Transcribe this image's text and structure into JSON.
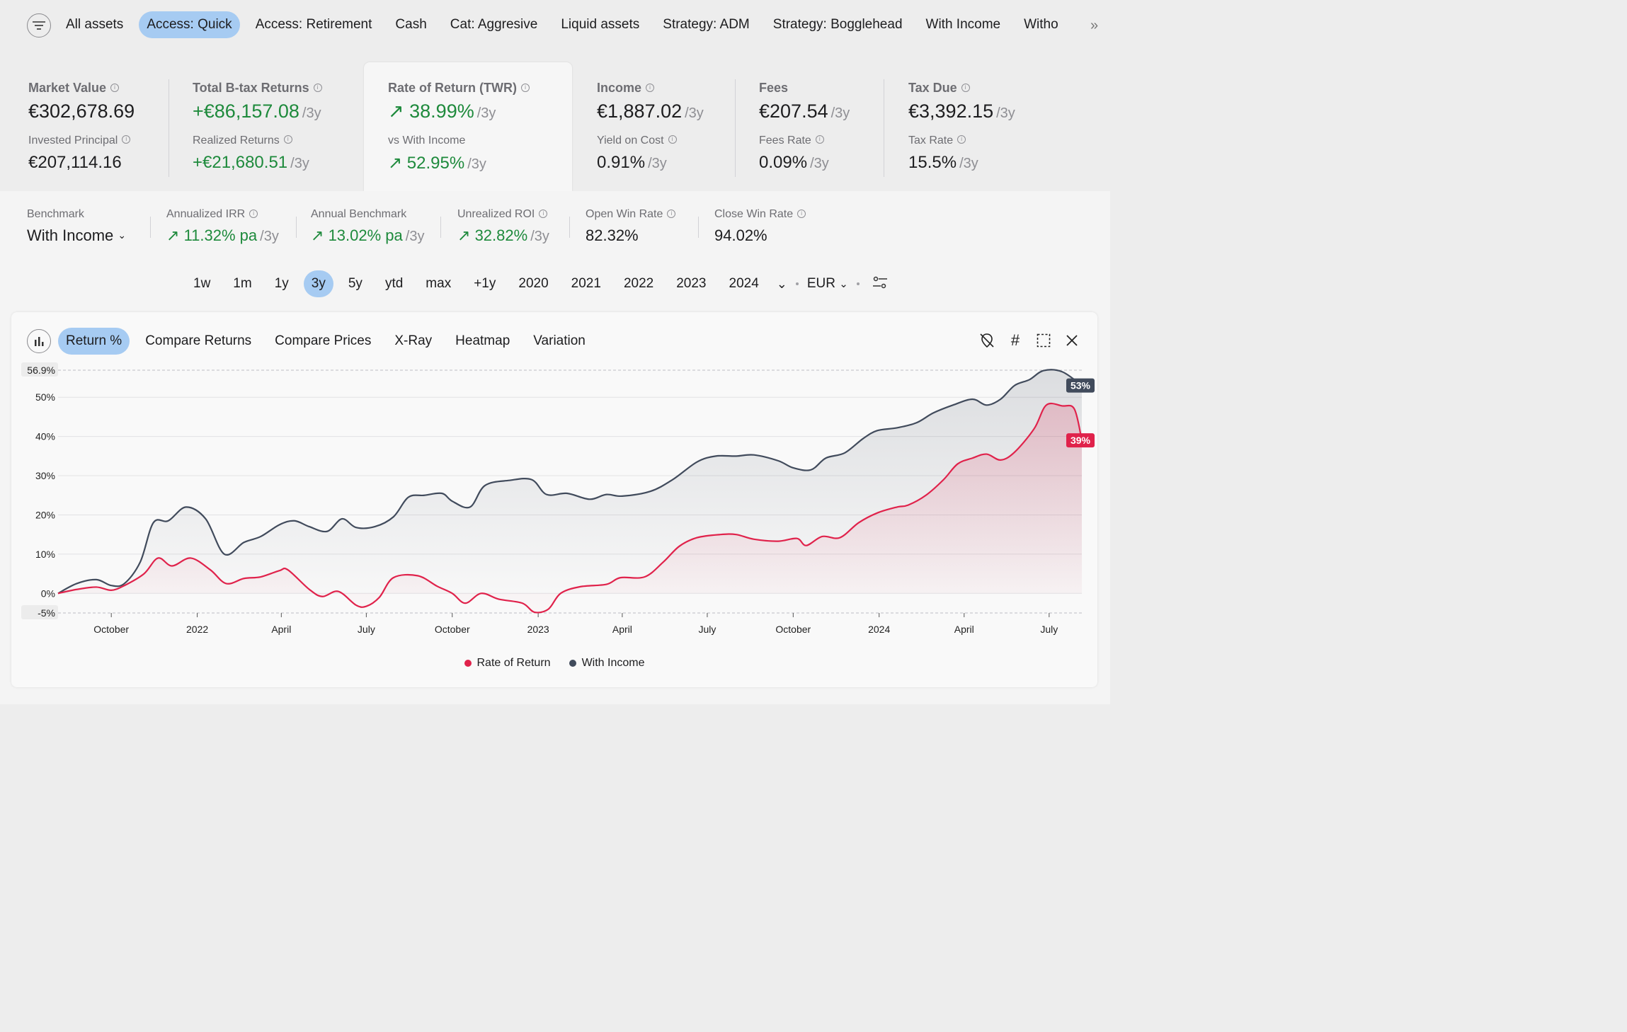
{
  "filters": {
    "tabs": [
      "All assets",
      "Access: Quick",
      "Access: Retirement",
      "Cash",
      "Cat: Aggresive",
      "Liquid assets",
      "Strategy: ADM",
      "Strategy: Bogglehead",
      "With Income",
      "Witho"
    ],
    "active": "Access: Quick"
  },
  "stats": {
    "market_value": {
      "label": "Market Value",
      "value": "€302,678.69",
      "sub_label": "Invested Principal",
      "sub_value": "€207,114.16"
    },
    "total_returns": {
      "label": "Total B-tax Returns",
      "value": "+€86,157.08",
      "period": "/3y",
      "sub_label": "Realized Returns",
      "sub_value": "+€21,680.51",
      "sub_period": "/3y"
    },
    "rate_of_return": {
      "label": "Rate of Return (TWR)",
      "value": "38.99%",
      "period": "/3y",
      "sub_label": "vs With Income",
      "sub_value": "52.95%",
      "sub_period": "/3y"
    },
    "income": {
      "label": "Income",
      "value": "€1,887.02",
      "period": "/3y",
      "sub_label": "Yield on Cost",
      "sub_value": "0.91%",
      "sub_period": "/3y"
    },
    "fees": {
      "label": "Fees",
      "value": "€207.54",
      "period": "/3y",
      "sub_label": "Fees Rate",
      "sub_value": "0.09%",
      "sub_period": "/3y"
    },
    "tax_due": {
      "label": "Tax Due",
      "value": "€3,392.15",
      "period": "/3y",
      "sub_label": "Tax Rate",
      "sub_value": "15.5%",
      "sub_period": "/3y"
    }
  },
  "benchmark": {
    "label": "Benchmark",
    "value": "With Income",
    "irr": {
      "label": "Annualized IRR",
      "value": "11.32% pa",
      "period": "/3y"
    },
    "annual_bench": {
      "label": "Annual Benchmark",
      "value": "13.02% pa",
      "period": "/3y"
    },
    "roi": {
      "label": "Unrealized ROI",
      "value": "32.82%",
      "period": "/3y"
    },
    "open_win": {
      "label": "Open Win Rate",
      "value": "82.32%"
    },
    "close_win": {
      "label": "Close Win Rate",
      "value": "94.02%"
    }
  },
  "periods": {
    "items": [
      "1w",
      "1m",
      "1y",
      "3y",
      "5y",
      "ytd",
      "max",
      "+1y",
      "2020",
      "2021",
      "2022",
      "2023",
      "2024"
    ],
    "active": "3y",
    "currency": "EUR"
  },
  "chart_tabs": {
    "items": [
      "Return %",
      "Compare Returns",
      "Compare Prices",
      "X-Ray",
      "Heatmap",
      "Variation"
    ],
    "active": "Return %"
  },
  "colors": {
    "accent": "#a6cbf2",
    "gain": "#1e8a3c",
    "ror": "#e0224b",
    "income": "#414b5c"
  },
  "chart_data": {
    "type": "line",
    "ylim": [
      -5,
      56.9
    ],
    "y_ticks": [
      "50%",
      "40%",
      "30%",
      "20%",
      "10%",
      "0%"
    ],
    "y_tick_values": [
      50,
      40,
      30,
      20,
      10,
      0
    ],
    "y_max_label": "56.9%",
    "y_min_label": "-5%",
    "x_ticks": [
      "October",
      "2022",
      "April",
      "July",
      "October",
      "2023",
      "April",
      "July",
      "October",
      "2024",
      "April",
      "July"
    ],
    "x_tick_dates": [
      "2021-10-01",
      "2022-01-01",
      "2022-04-01",
      "2022-07-01",
      "2022-10-01",
      "2023-01-01",
      "2023-04-01",
      "2023-07-01",
      "2023-10-01",
      "2024-01-01",
      "2024-04-01",
      "2024-07-01"
    ],
    "x_range": [
      "2021-08-05",
      "2024-08-05"
    ],
    "series": [
      {
        "name": "Rate of Return",
        "color": "#e0224b",
        "end_label": "39%",
        "points": [
          [
            "2021-08-05",
            0
          ],
          [
            "2021-08-25",
            1
          ],
          [
            "2021-09-15",
            1.6
          ],
          [
            "2021-10-01",
            0.8
          ],
          [
            "2021-10-15",
            2
          ],
          [
            "2021-11-05",
            5
          ],
          [
            "2021-11-20",
            9
          ],
          [
            "2021-12-05",
            7
          ],
          [
            "2021-12-25",
            9
          ],
          [
            "2022-01-15",
            6
          ],
          [
            "2022-02-01",
            2.5
          ],
          [
            "2022-02-20",
            3.8
          ],
          [
            "2022-03-10",
            4.2
          ],
          [
            "2022-03-30",
            5.8
          ],
          [
            "2022-04-08",
            6
          ],
          [
            "2022-05-01",
            1
          ],
          [
            "2022-05-15",
            -0.8
          ],
          [
            "2022-06-01",
            0.5
          ],
          [
            "2022-06-20",
            -3
          ],
          [
            "2022-07-01",
            -3.3
          ],
          [
            "2022-07-15",
            -1
          ],
          [
            "2022-07-30",
            4
          ],
          [
            "2022-08-25",
            4.5
          ],
          [
            "2022-09-15",
            1.8
          ],
          [
            "2022-10-01",
            0
          ],
          [
            "2022-10-15",
            -2.5
          ],
          [
            "2022-11-01",
            0
          ],
          [
            "2022-11-20",
            -1.5
          ],
          [
            "2022-12-15",
            -2.5
          ],
          [
            "2022-12-28",
            -4.8
          ],
          [
            "2023-01-12",
            -4
          ],
          [
            "2023-01-25",
            0
          ],
          [
            "2023-02-15",
            1.7
          ],
          [
            "2023-03-15",
            2.3
          ],
          [
            "2023-03-30",
            4
          ],
          [
            "2023-04-25",
            4.2
          ],
          [
            "2023-05-15",
            8
          ],
          [
            "2023-06-01",
            12
          ],
          [
            "2023-06-20",
            14.2
          ],
          [
            "2023-07-15",
            15
          ],
          [
            "2023-08-01",
            15
          ],
          [
            "2023-08-20",
            13.8
          ],
          [
            "2023-09-15",
            13.3
          ],
          [
            "2023-10-05",
            14
          ],
          [
            "2023-10-15",
            12.2
          ],
          [
            "2023-11-01",
            14.5
          ],
          [
            "2023-11-20",
            14.2
          ],
          [
            "2023-12-10",
            18
          ],
          [
            "2023-12-30",
            20.5
          ],
          [
            "2024-01-20",
            22
          ],
          [
            "2024-02-01",
            22.5
          ],
          [
            "2024-02-20",
            25
          ],
          [
            "2024-03-10",
            29
          ],
          [
            "2024-03-25",
            33
          ],
          [
            "2024-04-10",
            34.5
          ],
          [
            "2024-04-25",
            35.5
          ],
          [
            "2024-05-10",
            34
          ],
          [
            "2024-05-25",
            36
          ],
          [
            "2024-06-15",
            42
          ],
          [
            "2024-06-28",
            48
          ],
          [
            "2024-07-15",
            47.8
          ],
          [
            "2024-07-28",
            47
          ],
          [
            "2024-08-05",
            39
          ]
        ]
      },
      {
        "name": "With Income",
        "color": "#414b5c",
        "end_label": "53%",
        "points": [
          [
            "2021-08-05",
            0
          ],
          [
            "2021-08-25",
            2.5
          ],
          [
            "2021-09-15",
            3.5
          ],
          [
            "2021-10-01",
            2
          ],
          [
            "2021-10-15",
            2.5
          ],
          [
            "2021-11-01",
            8
          ],
          [
            "2021-11-15",
            18
          ],
          [
            "2021-12-01",
            18.5
          ],
          [
            "2021-12-20",
            22
          ],
          [
            "2022-01-10",
            19
          ],
          [
            "2022-01-30",
            10
          ],
          [
            "2022-02-20",
            13
          ],
          [
            "2022-03-10",
            14.5
          ],
          [
            "2022-03-30",
            17.5
          ],
          [
            "2022-04-15",
            18.5
          ],
          [
            "2022-05-01",
            17
          ],
          [
            "2022-05-20",
            15.8
          ],
          [
            "2022-06-05",
            19
          ],
          [
            "2022-06-20",
            16.8
          ],
          [
            "2022-07-10",
            17
          ],
          [
            "2022-07-30",
            19.5
          ],
          [
            "2022-08-15",
            24.5
          ],
          [
            "2022-09-01",
            25
          ],
          [
            "2022-09-20",
            25.5
          ],
          [
            "2022-10-01",
            23.5
          ],
          [
            "2022-10-20",
            22
          ],
          [
            "2022-11-05",
            27.5
          ],
          [
            "2022-12-01",
            28.8
          ],
          [
            "2022-12-25",
            29
          ],
          [
            "2023-01-10",
            25.2
          ],
          [
            "2023-02-01",
            25.5
          ],
          [
            "2023-02-25",
            24
          ],
          [
            "2023-03-15",
            25.2
          ],
          [
            "2023-04-01",
            24.8
          ],
          [
            "2023-05-01",
            26
          ],
          [
            "2023-05-25",
            29
          ],
          [
            "2023-06-20",
            33.5
          ],
          [
            "2023-07-10",
            35
          ],
          [
            "2023-08-01",
            35
          ],
          [
            "2023-08-20",
            35.3
          ],
          [
            "2023-09-15",
            33.8
          ],
          [
            "2023-10-01",
            32
          ],
          [
            "2023-10-20",
            31.5
          ],
          [
            "2023-11-05",
            34.5
          ],
          [
            "2023-11-25",
            35.8
          ],
          [
            "2023-12-15",
            39.5
          ],
          [
            "2023-12-30",
            41.5
          ],
          [
            "2024-01-20",
            42.2
          ],
          [
            "2024-02-10",
            43.5
          ],
          [
            "2024-02-28",
            46
          ],
          [
            "2024-03-20",
            48
          ],
          [
            "2024-04-10",
            49.5
          ],
          [
            "2024-04-25",
            48
          ],
          [
            "2024-05-10",
            49.5
          ],
          [
            "2024-05-25",
            53
          ],
          [
            "2024-06-10",
            54.5
          ],
          [
            "2024-06-25",
            56.8
          ],
          [
            "2024-07-15",
            56.5
          ],
          [
            "2024-08-05",
            53
          ]
        ]
      }
    ]
  }
}
